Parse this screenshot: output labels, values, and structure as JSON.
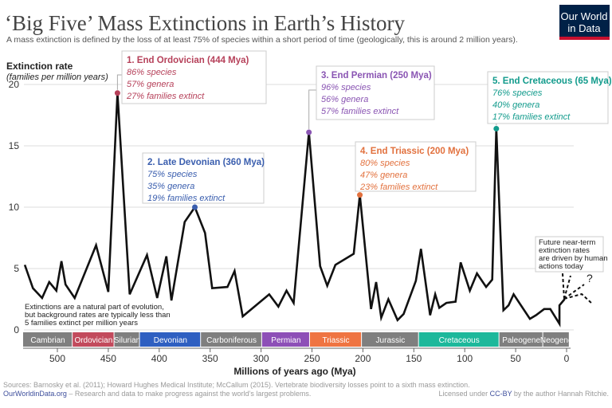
{
  "title": "‘Big Five’ Mass Extinctions in Earth’s History",
  "subtitle": "A mass extinction is defined by the loss of at least 75% of species within a short period of time (geologically, this is around 2 million years).",
  "logo": {
    "line1": "Our World",
    "line2": "in Data",
    "bg": "#002147",
    "accent": "#c8102e"
  },
  "chart_data": {
    "type": "line",
    "ylabel": "Extinction rate",
    "ylabel_sub": "(families per million years)",
    "xlabel": "Millions of years ago (Mya)",
    "xlim": [
      540,
      0
    ],
    "ylim": [
      0,
      20
    ],
    "x_ticks": [
      500,
      450,
      400,
      350,
      300,
      250,
      200,
      150,
      100,
      50,
      0
    ],
    "y_ticks": [
      0,
      5,
      10,
      15,
      20
    ],
    "grid": true,
    "x": [
      532,
      524,
      515,
      508,
      501,
      496,
      492,
      483,
      462,
      450,
      441,
      429,
      412,
      402,
      393,
      388,
      375,
      365,
      355,
      348,
      333,
      326,
      318,
      292,
      283,
      275,
      268,
      253,
      242,
      235,
      227,
      209,
      203,
      192,
      187,
      182,
      175,
      166,
      160,
      148,
      143,
      134,
      129,
      125,
      118,
      109,
      104,
      95,
      88,
      79,
      73,
      69,
      62,
      57,
      52,
      36,
      30,
      22,
      16,
      7,
      7,
      2
    ],
    "y": [
      5.3,
      3.4,
      2.6,
      3.9,
      3.2,
      5.6,
      3.7,
      2.6,
      6.9,
      3.1,
      19.3,
      2.9,
      6.1,
      2.6,
      6.0,
      2.4,
      8.8,
      10.0,
      7.9,
      3.4,
      3.5,
      4.8,
      1.1,
      2.9,
      1.9,
      3.2,
      2.2,
      16.1,
      5.2,
      3.6,
      5.3,
      6.2,
      11.0,
      1.7,
      3.9,
      1.0,
      2.5,
      0.8,
      1.3,
      4.0,
      6.6,
      1.2,
      2.9,
      1.8,
      2.2,
      2.3,
      5.5,
      3.2,
      4.6,
      3.5,
      4.1,
      16.4,
      1.6,
      2.0,
      2.9,
      0.9,
      1.2,
      1.7,
      1.7,
      0.5,
      2.0,
      2.5
    ],
    "periods": [
      {
        "name": "Cambrian",
        "start": 541,
        "end": 485,
        "color": "#7f7f7f"
      },
      {
        "name": "Ordovician",
        "start": 485,
        "end": 444,
        "color": "#c24a5c"
      },
      {
        "name": "Silurian",
        "start": 444,
        "end": 419,
        "color": "#7f7f7f"
      },
      {
        "name": "Devonian",
        "start": 419,
        "end": 359,
        "color": "#2e5fc1"
      },
      {
        "name": "Carboniferous",
        "start": 359,
        "end": 299,
        "color": "#7f7f7f"
      },
      {
        "name": "Permian",
        "start": 299,
        "end": 252,
        "color": "#8d4fb7"
      },
      {
        "name": "Triassic",
        "start": 252,
        "end": 201,
        "color": "#ef7442"
      },
      {
        "name": "Jurassic",
        "start": 201,
        "end": 145,
        "color": "#7f7f7f"
      },
      {
        "name": "Cretaceous",
        "start": 145,
        "end": 66,
        "color": "#1db89b"
      },
      {
        "name": "Paleogene",
        "start": 66,
        "end": 23,
        "color": "#7f7f7f"
      },
      {
        "name": "Neogene",
        "start": 23,
        "end": -3,
        "color": "#7f7f7f"
      }
    ],
    "events": [
      {
        "title": "1. End Ordovician (444 Mya)",
        "species": "86% species",
        "genera": "57% genera",
        "families": "27% families extinct",
        "x": 441,
        "y": 19.3,
        "color": "#b6415a"
      },
      {
        "title": "2. Late Devonian (360 Mya)",
        "species": "75% species",
        "genera": "35% genera",
        "families": "19% families extinct",
        "x": 365,
        "y": 10.0,
        "color": "#3a5eae"
      },
      {
        "title": "3. End Permian (250 Mya)",
        "species": "96% species",
        "genera": "56% genera",
        "families": "57% families extinct",
        "x": 253,
        "y": 16.1,
        "color": "#8a55b3"
      },
      {
        "title": "4. End Triassic (200 Mya)",
        "species": "80% species",
        "genera": "47% genera",
        "families": "23% families extinct",
        "x": 203,
        "y": 11.0,
        "color": "#e2713e"
      },
      {
        "title": "5. End Cretaceous (65 Mya)",
        "species": "76% species",
        "genera": "40% genera",
        "families": "17% families extinct",
        "x": 69,
        "y": 16.4,
        "color": "#129b8c"
      }
    ],
    "background_note": [
      "Extinctions are a natural part of evolution,",
      "but background rates are typically less than",
      "5 families extinct per million years"
    ],
    "future_note": [
      "Future near-term",
      "extinction rates",
      "are driven by human",
      "actions today"
    ],
    "future_mark": "?"
  },
  "footer": {
    "sources": "Sources: Barnosky et al. (2011); Howard Hughes Medical Institute; McCallum (2015). Vertebrate biodiversity losses point to a sixth mass extinction.",
    "site": "OurWorldinData.org",
    "tagline": " – Research and data to make progress against the world’s largest problems.",
    "license_pre": "Licensed under ",
    "license": "CC-BY",
    "license_post": " by the author Hannah Ritchie."
  }
}
